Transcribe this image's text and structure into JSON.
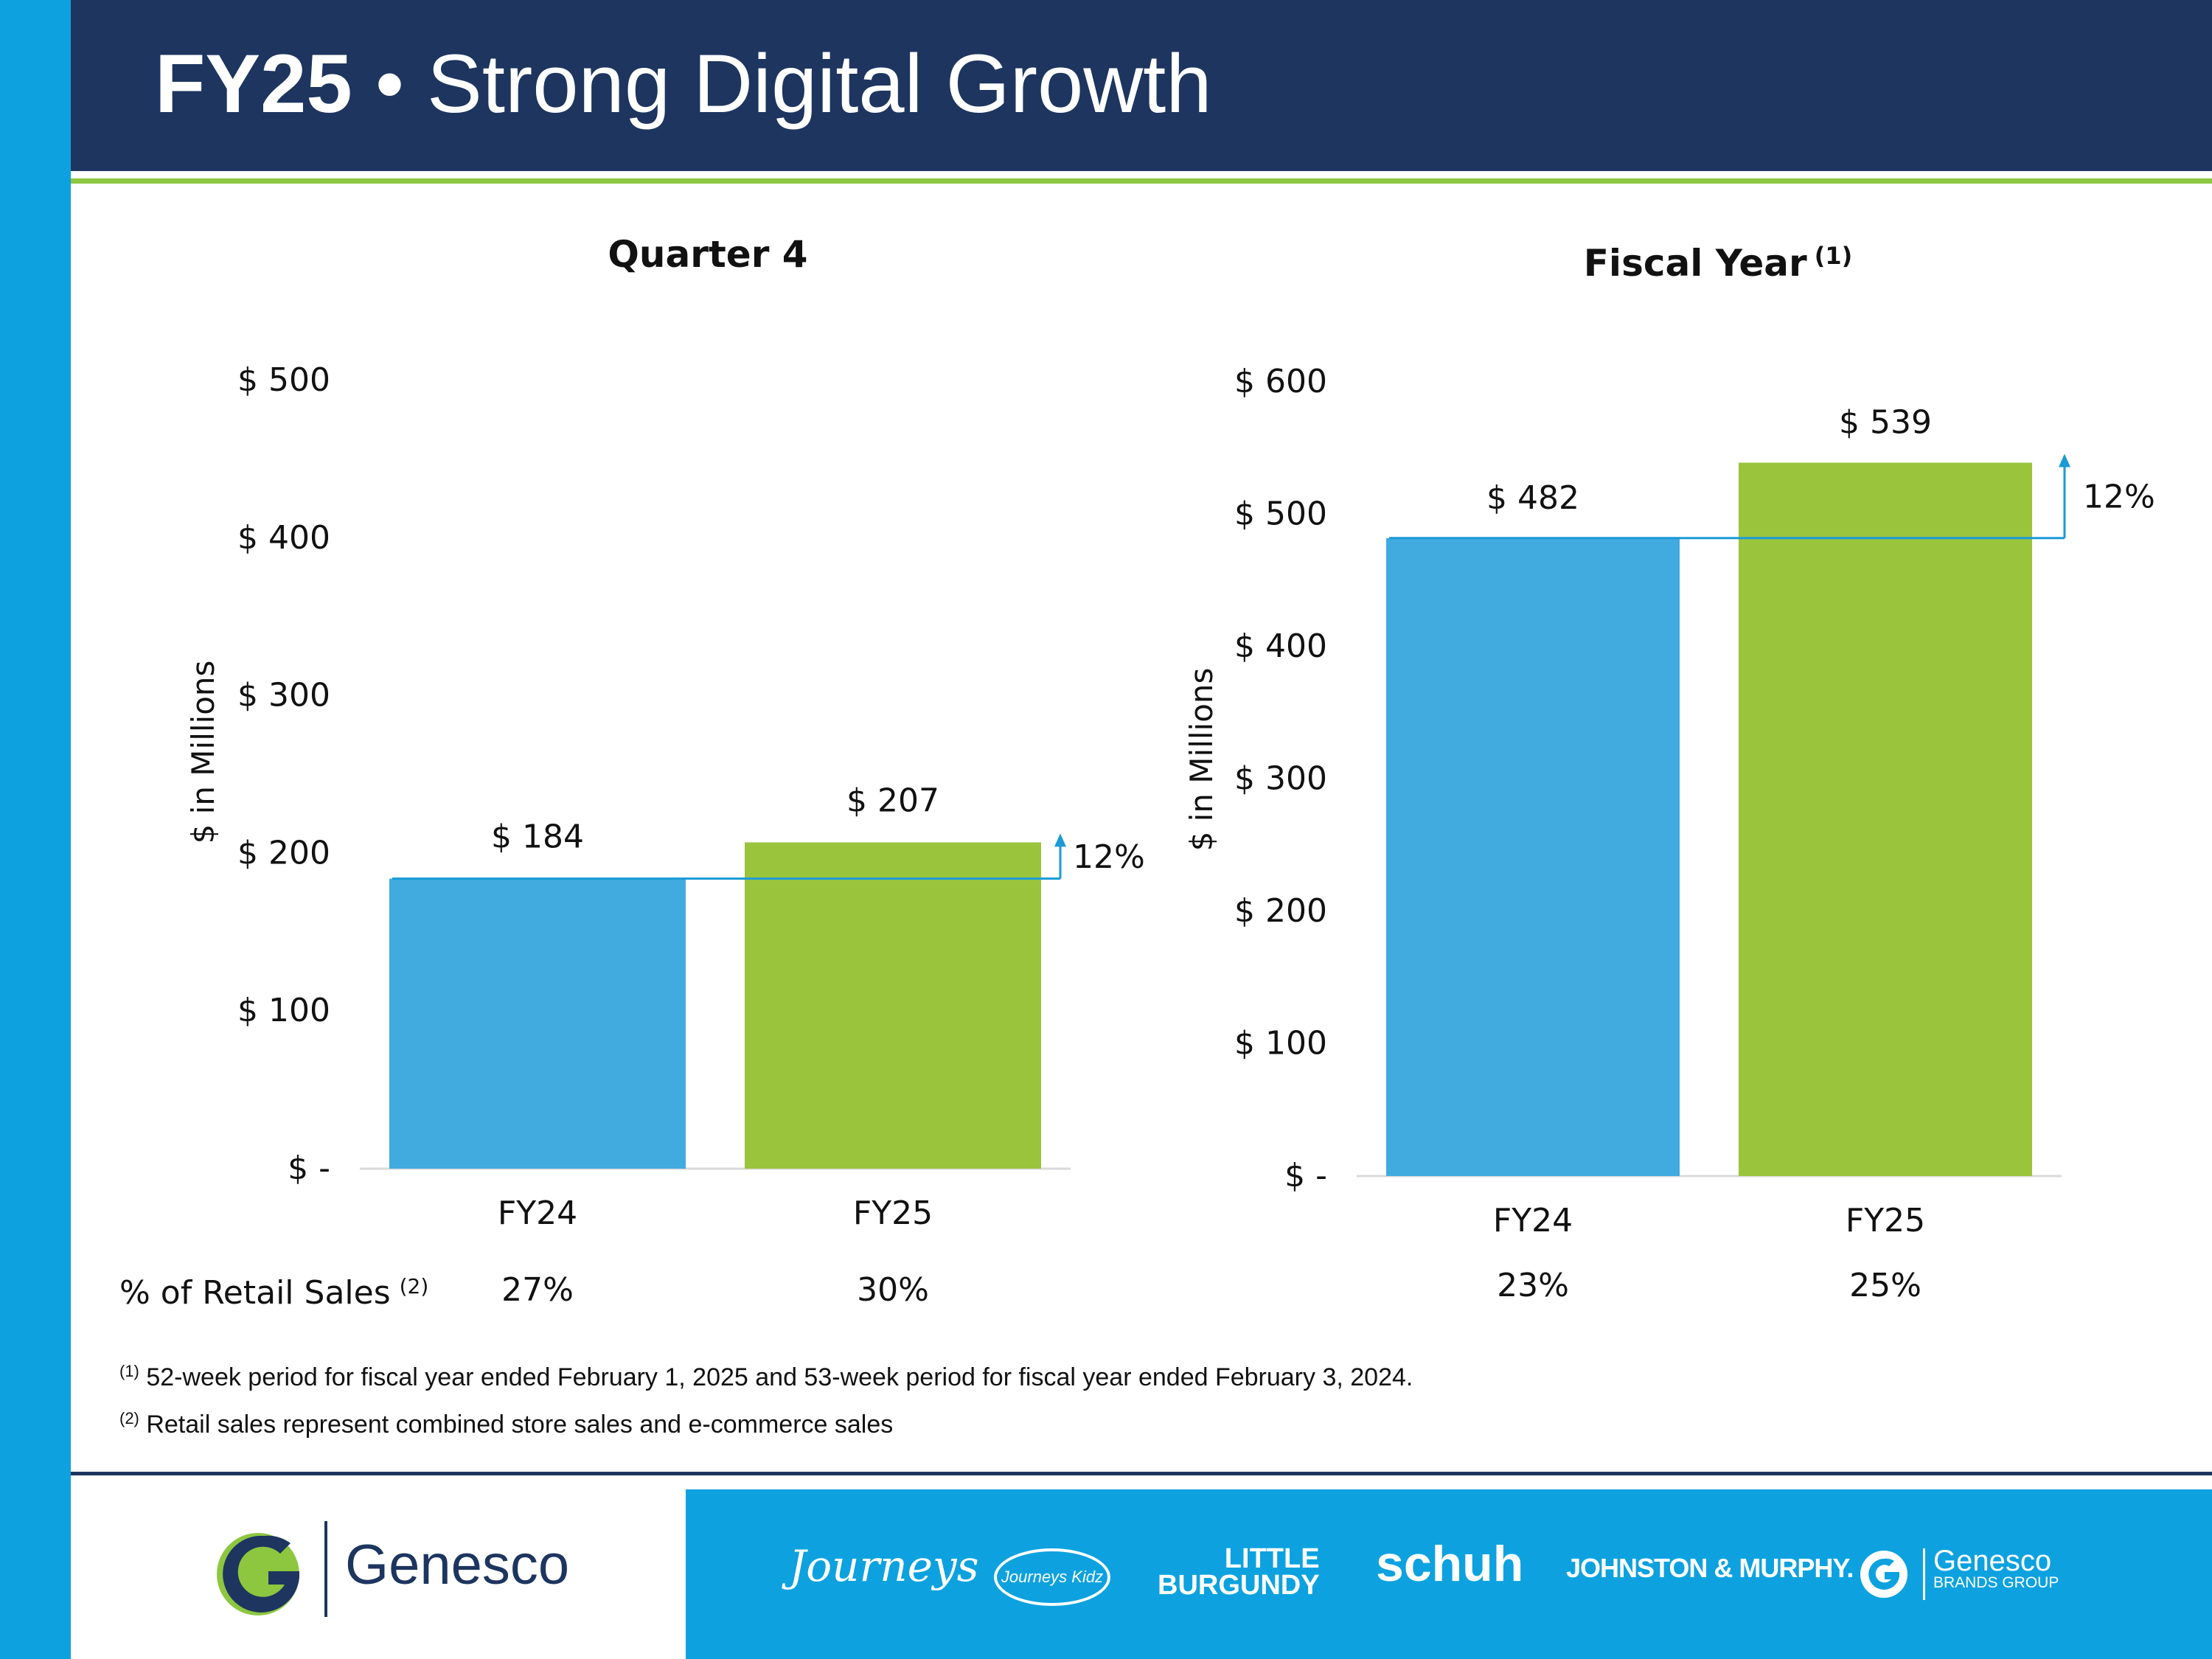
{
  "header": {
    "title_bold": "FY25",
    "title_rest": " • Strong Digital Growth"
  },
  "colors": {
    "navy": "#1d355f",
    "accent_blue": "#0da2df",
    "green_rule": "#8dc63f",
    "bar_fy24": "#41abdf",
    "bar_fy25": "#9bc43d",
    "arrow": "#1a9ad6"
  },
  "chart_data": [
    {
      "type": "bar",
      "title": "Quarter 4",
      "title_sup": "",
      "ylabel": "$ in Millions",
      "ylim": [
        0,
        500
      ],
      "yticks": [
        "$ -",
        "$ 100",
        "$ 200",
        "$ 300",
        "$ 400",
        "$ 500"
      ],
      "categories": [
        "FY24",
        "FY25"
      ],
      "values": [
        184,
        207
      ],
      "value_labels": [
        "$ 184",
        "$ 207"
      ],
      "growth_label": "12%",
      "retail_pct": [
        "27%",
        "30%"
      ],
      "grid": false
    },
    {
      "type": "bar",
      "title": "Fiscal Year",
      "title_sup": "(1)",
      "ylabel": "$ in Millions",
      "ylim": [
        0,
        600
      ],
      "yticks": [
        "$ -",
        "$ 100",
        "$ 200",
        "$ 300",
        "$ 400",
        "$ 500",
        "$ 600"
      ],
      "categories": [
        "FY24",
        "FY25"
      ],
      "values": [
        482,
        539
      ],
      "value_labels": [
        "$ 482",
        "$ 539"
      ],
      "growth_label": "12%",
      "retail_pct": [
        "23%",
        "25%"
      ],
      "grid": false
    }
  ],
  "retail_row": {
    "label": "% of Retail Sales",
    "sup": "(2)"
  },
  "notes": [
    {
      "sup": "(1)",
      "text": "52-week period for fiscal year ended February 1, 2025 and 53-week period for fiscal year ended February 3, 2024."
    },
    {
      "sup": "(2)",
      "text": "Retail sales represent combined store sales and e-commerce sales"
    }
  ],
  "footer": {
    "company": "Genesco",
    "brands": [
      "Journeys",
      "Journeys Kidz",
      "LITTLE",
      "BURGUNDY",
      "schuh",
      "JOHNSTON & MURPHY.",
      "Genesco",
      "BRANDS GROUP"
    ]
  }
}
